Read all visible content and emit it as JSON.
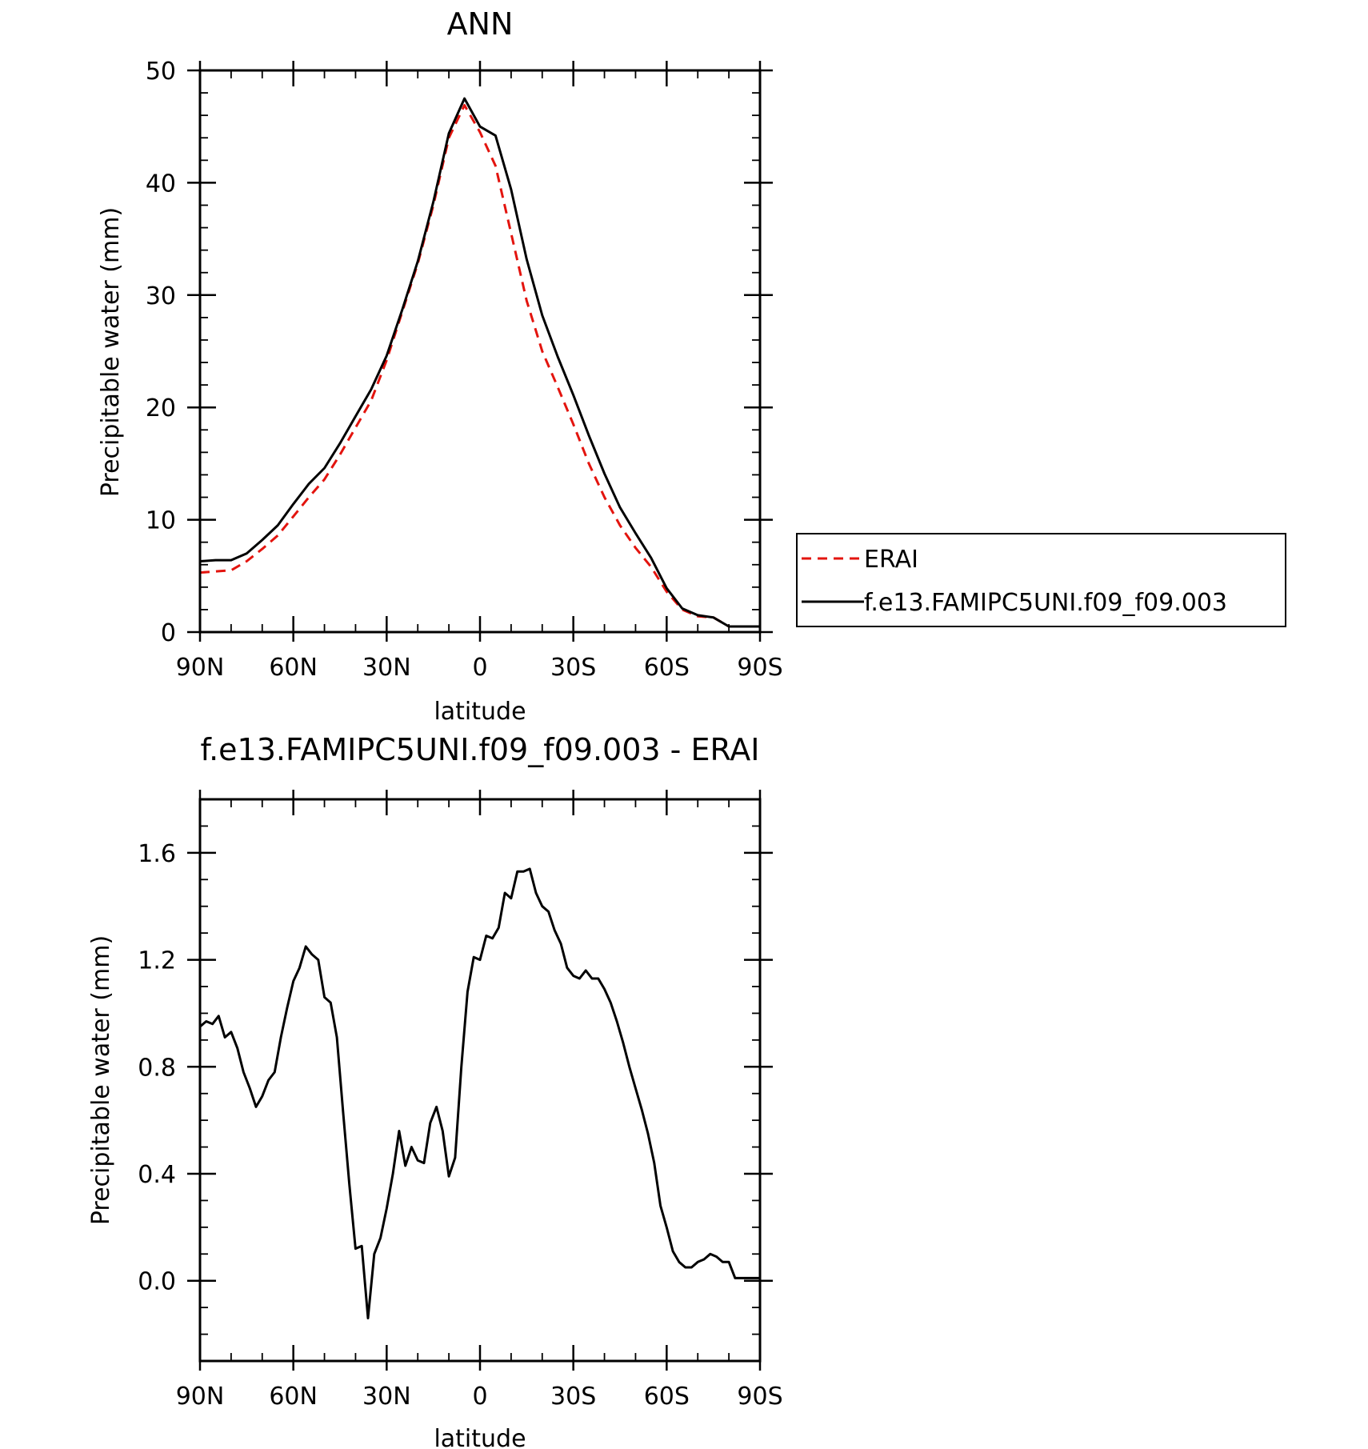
{
  "chart_data": [
    {
      "type": "line",
      "title": "ANN",
      "xlabel": "latitude",
      "ylabel": "Precipitable water (mm)",
      "xlim": [
        90,
        -90
      ],
      "ylim": [
        0,
        50
      ],
      "x_ticks": [
        {
          "value": 90,
          "label": "90N"
        },
        {
          "value": 60,
          "label": "60N"
        },
        {
          "value": 30,
          "label": "30N"
        },
        {
          "value": 0,
          "label": "0"
        },
        {
          "value": -30,
          "label": "30S"
        },
        {
          "value": -60,
          "label": "60S"
        },
        {
          "value": -90,
          "label": "90S"
        }
      ],
      "y_ticks": [
        {
          "value": 0,
          "label": "0"
        },
        {
          "value": 10,
          "label": "10"
        },
        {
          "value": 20,
          "label": "20"
        },
        {
          "value": 30,
          "label": "30"
        },
        {
          "value": 40,
          "label": "40"
        },
        {
          "value": 50,
          "label": "50"
        }
      ],
      "legend": {
        "placement": "right"
      },
      "series": [
        {
          "name": "ERAI",
          "color": "#e3140e",
          "style": "dashed",
          "x": [
            90,
            85,
            80,
            75,
            70,
            65,
            60,
            55,
            50,
            45,
            40,
            35,
            30,
            25,
            20,
            15,
            10,
            5,
            0,
            -5,
            -10,
            -15,
            -20,
            -25,
            -30,
            -35,
            -40,
            -45,
            -50,
            -55,
            -60,
            -65,
            -70,
            -75,
            -80,
            -85,
            -90
          ],
          "values": [
            5.3,
            5.4,
            5.5,
            6.3,
            7.4,
            8.6,
            10.3,
            12.0,
            13.6,
            15.8,
            18.2,
            20.6,
            24.2,
            28.5,
            32.8,
            38.0,
            44.0,
            46.9,
            44.5,
            41.5,
            35.5,
            29.5,
            25.0,
            21.8,
            18.5,
            15.0,
            12.0,
            9.5,
            7.5,
            5.8,
            3.6,
            2.0,
            1.4,
            1.3,
            0.5,
            0.5,
            0.5
          ]
        },
        {
          "name": "f.e13.FAMIPC5UNI.f09_f09.003",
          "color": "#000000",
          "style": "solid",
          "x": [
            90,
            85,
            80,
            75,
            70,
            65,
            60,
            55,
            50,
            45,
            40,
            35,
            30,
            25,
            20,
            15,
            10,
            5,
            0,
            -5,
            -10,
            -15,
            -20,
            -25,
            -30,
            -35,
            -40,
            -45,
            -50,
            -55,
            -60,
            -65,
            -70,
            -75,
            -80,
            -85,
            -90
          ],
          "values": [
            6.3,
            6.4,
            6.4,
            7.0,
            8.2,
            9.5,
            11.4,
            13.2,
            14.6,
            16.8,
            19.2,
            21.6,
            24.6,
            28.7,
            33.0,
            38.3,
            44.4,
            47.5,
            45.0,
            44.2,
            39.4,
            33.2,
            28.2,
            24.5,
            21.1,
            17.5,
            14.1,
            11.1,
            8.8,
            6.6,
            3.9,
            2.1,
            1.5,
            1.3,
            0.5,
            0.5,
            0.5
          ]
        }
      ]
    },
    {
      "type": "line",
      "title": "f.e13.FAMIPC5UNI.f09_f09.003 - ERAI",
      "xlabel": "latitude",
      "ylabel": "Precipitable water (mm)",
      "xlim": [
        90,
        -90
      ],
      "ylim": [
        -0.3,
        1.8
      ],
      "x_ticks": [
        {
          "value": 90,
          "label": "90N"
        },
        {
          "value": 60,
          "label": "60N"
        },
        {
          "value": 30,
          "label": "30N"
        },
        {
          "value": 0,
          "label": "0"
        },
        {
          "value": -30,
          "label": "30S"
        },
        {
          "value": -60,
          "label": "60S"
        },
        {
          "value": -90,
          "label": "90S"
        }
      ],
      "y_ticks": [
        {
          "value": 0.0,
          "label": "0.0"
        },
        {
          "value": 0.4,
          "label": "0.4"
        },
        {
          "value": 0.8,
          "label": "0.8"
        },
        {
          "value": 1.2,
          "label": "1.2"
        },
        {
          "value": 1.6,
          "label": "1.6"
        }
      ],
      "series": [
        {
          "color": "#000000",
          "style": "solid",
          "x": [
            90,
            88,
            86,
            84,
            82,
            80,
            78,
            76,
            74,
            72,
            70,
            68,
            66,
            64,
            62,
            60,
            58,
            56,
            54,
            52,
            50,
            48,
            46,
            44,
            42,
            40,
            38,
            36,
            34,
            32,
            30,
            28,
            26,
            24,
            22,
            20,
            18,
            16,
            14,
            12,
            10,
            8,
            6,
            4,
            2,
            0,
            -2,
            -4,
            -6,
            -8,
            -10,
            -12,
            -14,
            -16,
            -18,
            -20,
            -22,
            -24,
            -26,
            -28,
            -30,
            -32,
            -34,
            -36,
            -38,
            -40,
            -42,
            -44,
            -46,
            -48,
            -50,
            -52,
            -54,
            -56,
            -58,
            -60,
            -62,
            -64,
            -66,
            -68,
            -70,
            -72,
            -74,
            -76,
            -78,
            -80,
            -82,
            -84,
            -86,
            -88,
            -90
          ],
          "values": [
            0.95,
            0.97,
            0.96,
            0.99,
            0.91,
            0.93,
            0.87,
            0.78,
            0.72,
            0.65,
            0.69,
            0.75,
            0.78,
            0.91,
            1.02,
            1.12,
            1.17,
            1.25,
            1.22,
            1.2,
            1.06,
            1.04,
            0.91,
            0.63,
            0.36,
            0.12,
            0.13,
            -0.14,
            0.1,
            0.16,
            0.27,
            0.4,
            0.56,
            0.43,
            0.5,
            0.45,
            0.44,
            0.59,
            0.65,
            0.56,
            0.39,
            0.46,
            0.8,
            1.08,
            1.21,
            1.2,
            1.29,
            1.28,
            1.32,
            1.45,
            1.43,
            1.53,
            1.53,
            1.54,
            1.45,
            1.4,
            1.38,
            1.31,
            1.26,
            1.17,
            1.14,
            1.13,
            1.16,
            1.13,
            1.13,
            1.09,
            1.04,
            0.97,
            0.89,
            0.8,
            0.72,
            0.64,
            0.55,
            0.44,
            0.28,
            0.2,
            0.11,
            0.07,
            0.05,
            0.05,
            0.07,
            0.08,
            0.1,
            0.09,
            0.07,
            0.07,
            0.01,
            0.01,
            0.01,
            0.01,
            0.01
          ]
        }
      ]
    }
  ]
}
